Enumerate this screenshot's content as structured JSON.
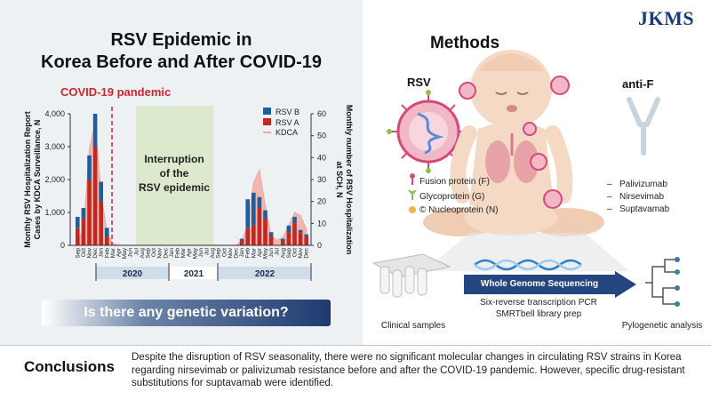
{
  "logo": "JKMS",
  "left": {
    "title_line1": "RSV Epidemic in",
    "title_line2": "Korea Before and After COVID-19",
    "pandemic_label": "COVID-19 pandemic",
    "interruption_line1": "Interruption",
    "interruption_line2": "of the",
    "interruption_line3": "RSV epidemic",
    "question": "Is there any genetic variation?"
  },
  "chart_data": {
    "type": "bar",
    "title": "RSV Epidemic in Korea Before and After COVID-19",
    "ylabel_left": "Monthly RSV Hospitalization Report Cases by KDCA Surveillance, N",
    "ylabel_right": "Monthly number of RSV Hospitalization at SCH, N",
    "ylim_left": [
      0,
      4000
    ],
    "yticks_left": [
      "0",
      "1,000",
      "2,000",
      "3,000",
      "4,000"
    ],
    "ylim_right": [
      0,
      60
    ],
    "yticks_right": [
      "0",
      "10",
      "20",
      "30",
      "40",
      "50",
      "60"
    ],
    "months": [
      "Sep",
      "Oct",
      "Nov",
      "Dec",
      "Jan",
      "Feb",
      "Mar",
      "Apr",
      "May",
      "Jun",
      "Jul",
      "Aug",
      "Sep",
      "Oct",
      "Nov",
      "Dec",
      "Jan",
      "Feb",
      "Mar",
      "Apr",
      "May",
      "Jun",
      "Jul",
      "Aug",
      "Sep",
      "Oct",
      "Nov",
      "Dec",
      "Jan",
      "Feb",
      "Mar",
      "Apr",
      "May",
      "Jun",
      "Jul",
      "Aug",
      "Sep",
      "Oct",
      "Nov",
      "Dec"
    ],
    "year_labels": [
      "2020",
      "2021",
      "2022"
    ],
    "legend": [
      "RSV B",
      "RSV A",
      "KDCA"
    ],
    "colors": {
      "rsv_b": "#1d5f9c",
      "rsv_a": "#c1281f",
      "kdca": "#f2a39b",
      "pandemic_line": "#d0262b",
      "interruption": "#d9e8c9"
    },
    "series": [
      {
        "name": "RSV A",
        "values": [
          8,
          12,
          30,
          45,
          20,
          4,
          0,
          0,
          0,
          0,
          0,
          0,
          0,
          0,
          0,
          0,
          0,
          0,
          0,
          0,
          0,
          0,
          0,
          0,
          0,
          0,
          0,
          0,
          2,
          8,
          9,
          17,
          12,
          4,
          0,
          2,
          6,
          10,
          6,
          4
        ]
      },
      {
        "name": "RSV B",
        "values": [
          5,
          5,
          11,
          15,
          9,
          4,
          0,
          0,
          0,
          0,
          0,
          0,
          0,
          0,
          0,
          0,
          0,
          0,
          0,
          0,
          0,
          0,
          0,
          0,
          0,
          0,
          0,
          0,
          1,
          13,
          15,
          5,
          4,
          2,
          0,
          1,
          3,
          3,
          1,
          1
        ]
      },
      {
        "name": "KDCA",
        "values": [
          100,
          500,
          2900,
          3800,
          1600,
          400,
          50,
          10,
          5,
          5,
          5,
          5,
          5,
          5,
          5,
          5,
          5,
          5,
          5,
          5,
          5,
          5,
          5,
          5,
          5,
          5,
          5,
          5,
          150,
          600,
          1900,
          2300,
          1200,
          300,
          150,
          250,
          600,
          1000,
          900,
          500
        ]
      }
    ]
  },
  "methods": {
    "title": "Methods",
    "rsv_label": "RSV",
    "antif_label": "anti-F",
    "legend": [
      {
        "label": "Fusion protein (F)",
        "color": "#d44a7a",
        "icon": "fusion-protein-icon"
      },
      {
        "label": "Glycoprotein (G)",
        "color": "#8bc34a",
        "icon": "glycoprotein-icon"
      },
      {
        "label": "© Nucleoprotein (N)",
        "color": "#f0b24a",
        "icon": "nucleoprotein-icon"
      }
    ],
    "antibodies": [
      "Palivizumab",
      "Nirsevimab",
      "Suptavamab"
    ],
    "dash": "–",
    "wgs_label": "Whole Genome Sequencing",
    "clinical_label": "Clinical samples",
    "pcr_line1": "Six-reverse transcription PCR",
    "pcr_line2": "SMRTbell library prep",
    "phylo_label": "Pylogenetic analysis"
  },
  "conclusions": {
    "label": "Conclusions",
    "text": "Despite the disruption of RSV seasonality, there were no significant molecular changes in circulating RSV strains in Korea regarding nirsevimab or palivizumab resistance before and after the COVID-19 pandemic. However, specific drug-resistant substitutions for suptavamab were identified."
  }
}
